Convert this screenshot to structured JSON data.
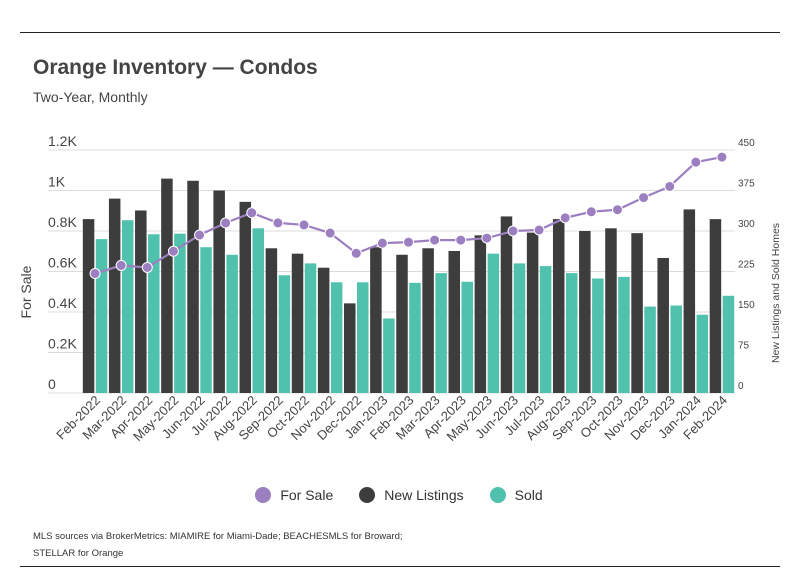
{
  "header": {
    "title": "Orange Inventory — Condos",
    "subtitle": "Two-Year, Monthly"
  },
  "footer": {
    "source_line1": "MLS sources via BrokerMetrics: MIAMIRE for Miami-Dade; BEACHESMLS for Broward;",
    "source_line2": "STELLAR for Orange"
  },
  "colors": {
    "for_sale": "#9b7fc0",
    "new_listings": "#3d3d3d",
    "sold": "#4fc1ac",
    "grid": "#dcdcdc"
  },
  "chart_data": {
    "type": "bar",
    "title": "Orange Inventory — Condos",
    "subtitle": "Two-Year, Monthly",
    "categories": [
      "Feb-2022",
      "Mar-2022",
      "Apr-2022",
      "May-2022",
      "Jun-2022",
      "Jul-2022",
      "Aug-2022",
      "Sep-2022",
      "Oct-2022",
      "Nov-2022",
      "Dec-2022",
      "Jan-2023",
      "Feb-2023",
      "Mar-2023",
      "Apr-2023",
      "May-2023",
      "Jun-2023",
      "Jul-2023",
      "Aug-2023",
      "Sep-2023",
      "Oct-2023",
      "Nov-2023",
      "Dec-2023",
      "Jan-2024",
      "Feb-2024"
    ],
    "ylabel_left": "For Sale",
    "ylabel_right": "New Listings and Sold Homes",
    "left_axis": {
      "min": 0,
      "max": 1200,
      "ticks": [
        0,
        200,
        400,
        600,
        800,
        1000,
        1200
      ],
      "tick_labels": [
        "0",
        "0.2K",
        "0.4K",
        "0.6K",
        "0.8K",
        "1K",
        "1.2K"
      ]
    },
    "right_axis": {
      "min": 0,
      "max": 450,
      "ticks": [
        0,
        75,
        150,
        225,
        300,
        375,
        450
      ],
      "tick_labels": [
        "0",
        "75",
        "150",
        "225",
        "300",
        "375",
        "450"
      ]
    },
    "legend": [
      "For Sale",
      "New Listings",
      "Sold"
    ],
    "legend_position": "bottom",
    "series": [
      {
        "name": "For Sale",
        "kind": "line",
        "axis": "left",
        "values": [
          590,
          630,
          620,
          700,
          780,
          840,
          890,
          840,
          830,
          790,
          690,
          740,
          745,
          755,
          755,
          765,
          800,
          805,
          865,
          895,
          905,
          965,
          1020,
          1140,
          1165
        ]
      },
      {
        "name": "New Listings",
        "kind": "bar",
        "axis": "right",
        "values": [
          322,
          360,
          338,
          397,
          393,
          375,
          354,
          268,
          258,
          232,
          166,
          270,
          256,
          268,
          263,
          292,
          327,
          297,
          322,
          300,
          305,
          296,
          250,
          340,
          322
        ]
      },
      {
        "name": "Sold",
        "kind": "bar",
        "axis": "right",
        "values": [
          285,
          320,
          294,
          295,
          270,
          256,
          305,
          218,
          240,
          205,
          205,
          138,
          204,
          222,
          206,
          258,
          240,
          235,
          222,
          212,
          215,
          160,
          162,
          145,
          180
        ]
      }
    ]
  }
}
